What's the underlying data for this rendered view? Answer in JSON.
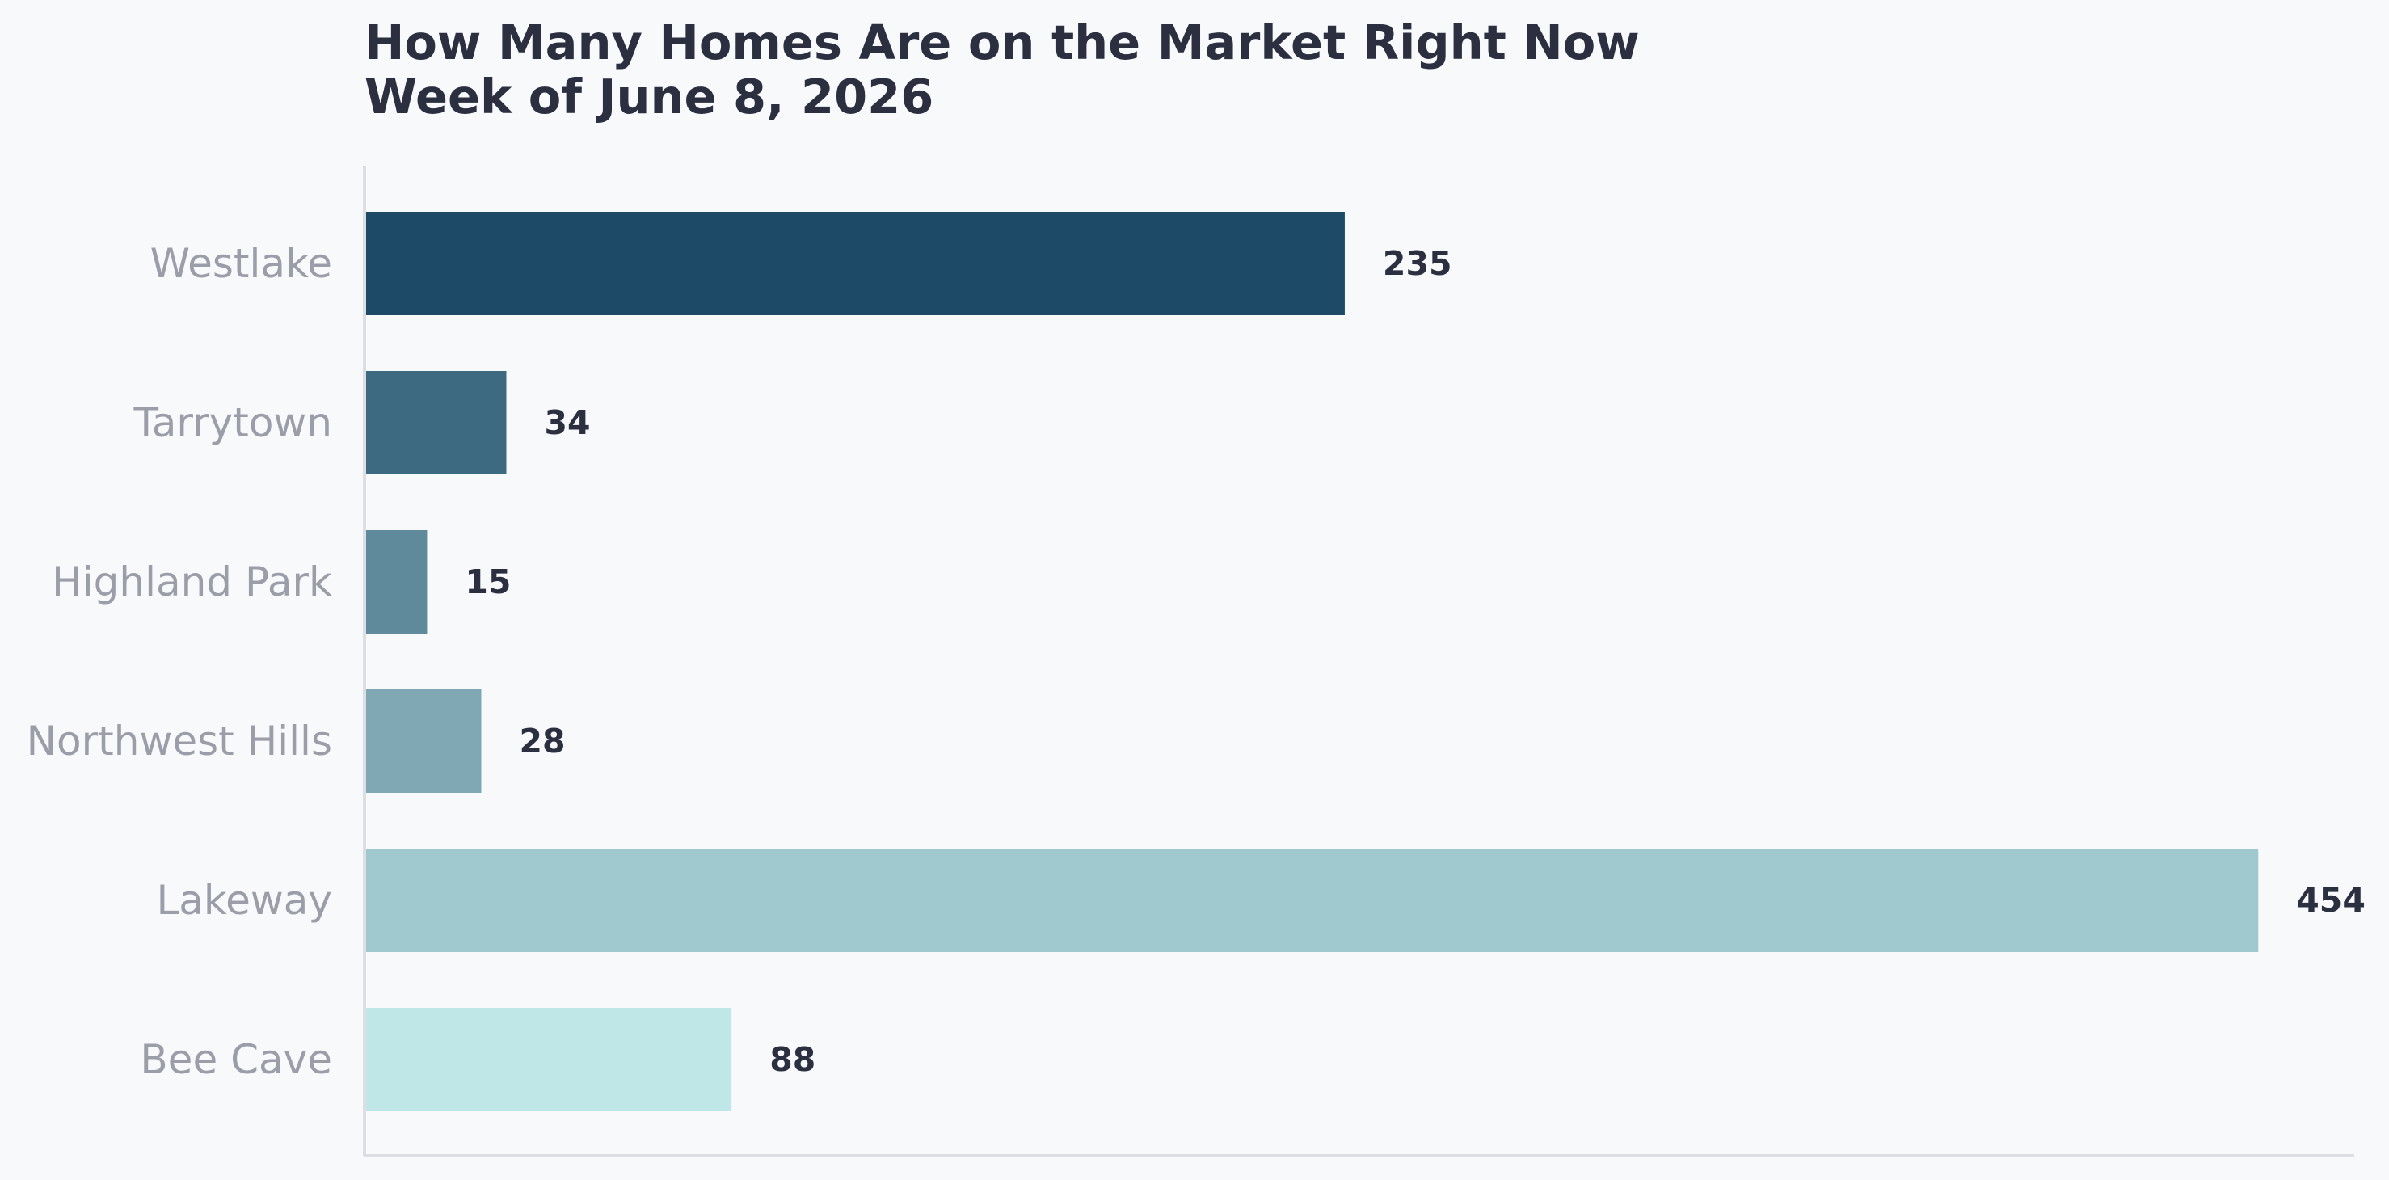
{
  "chart_data": {
    "type": "bar",
    "orientation": "horizontal",
    "title_lines": [
      "How Many Homes Are on the Market Right Now",
      "Week of June 8, 2026"
    ],
    "xlabel": "",
    "ylabel": "",
    "categories": [
      "Westlake",
      "Tarrytown",
      "Highland Park",
      "Northwest Hills",
      "Lakeway",
      "Bee Cave"
    ],
    "values": [
      235,
      34,
      15,
      28,
      454,
      88
    ],
    "colors": [
      "#1d4a67",
      "#3d6a80",
      "#5e8a9b",
      "#7fa8b4",
      "#9fc9cf",
      "#bfe7e8"
    ],
    "xlim": [
      0,
      477
    ],
    "grid": false,
    "legend": "none"
  },
  "style": {
    "background": "#f8f9fb",
    "title_color": "#2b2f3f",
    "category_label_color": "#9b9ea9",
    "value_label_color": "#2b2f3f",
    "axis_color": "#dcdee3"
  }
}
